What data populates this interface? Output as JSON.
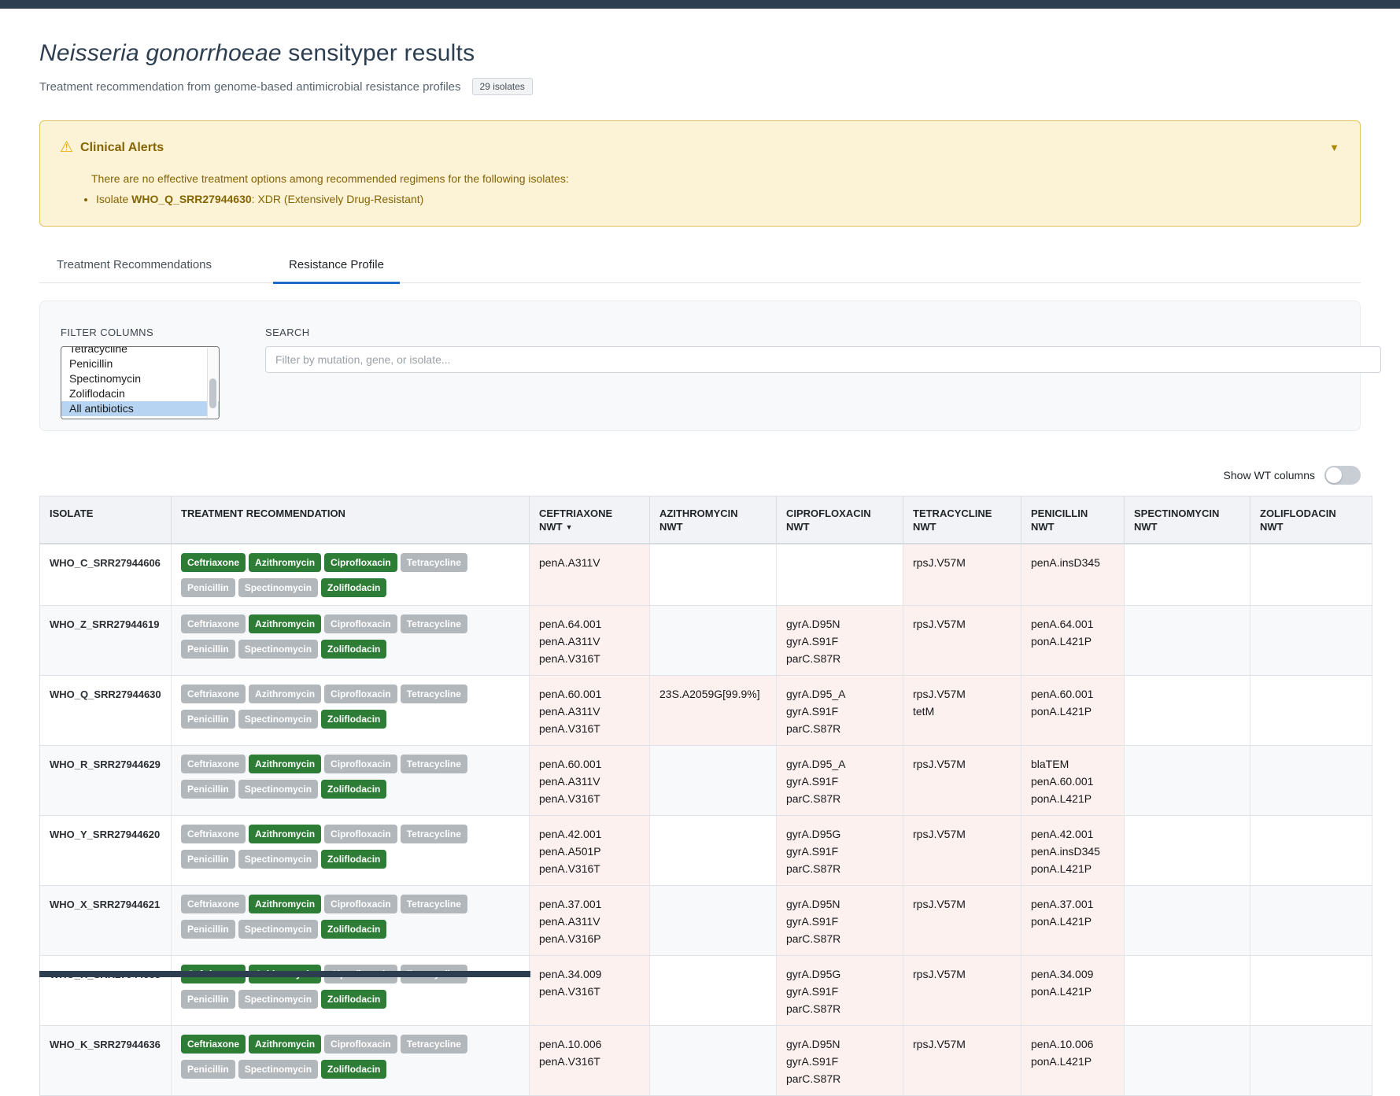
{
  "page": {
    "title_species": "Neisseria gonorrhoeae",
    "title_rest": " sensityper results",
    "subtitle": "Treatment recommendation from genome-based antimicrobial resistance profiles",
    "isolate_count": "29 isolates"
  },
  "alert": {
    "warning_icon": "⚠",
    "title": "Clinical Alerts",
    "collapse_icon": "▼",
    "message": "There are no effective treatment options among recommended regimens for the following isolates:",
    "items": [
      {
        "prefix": "Isolate ",
        "isolate": "WHO_Q_SRR27944630",
        "suffix": ": XDR (Extensively Drug-Resistant)"
      }
    ]
  },
  "tabs": [
    {
      "label": "Treatment Recommendations",
      "active": false
    },
    {
      "label": "Resistance Profile",
      "active": true
    }
  ],
  "filters": {
    "filter_columns_label": "FILTER COLUMNS",
    "options": [
      "Tetracycline",
      "Penicillin",
      "Spectinomycin",
      "Zoliflodacin",
      "All antibiotics"
    ],
    "selected_option": "All antibiotics",
    "search_label": "SEARCH",
    "search_placeholder": "Filter by mutation, gene, or isolate...",
    "search_value": ""
  },
  "toolbar": {
    "toggle_label": "Show WT columns",
    "toggle_state": "off"
  },
  "table": {
    "sort_icon": "▼",
    "columns": [
      {
        "label": "ISOLATE"
      },
      {
        "label": "TREATMENT RECOMMENDATION"
      },
      {
        "label": "CEFTRIAXONE",
        "sub": "NWT",
        "sorted": true
      },
      {
        "label": "AZITHROMYCIN",
        "sub": "NWT"
      },
      {
        "label": "CIPROFLOXACIN",
        "sub": "NWT"
      },
      {
        "label": "TETRACYCLINE",
        "sub": "NWT"
      },
      {
        "label": "PENICILLIN",
        "sub": "NWT"
      },
      {
        "label": "SPECTINOMYCIN",
        "sub": "NWT"
      },
      {
        "label": "ZOLIFLODACIN",
        "sub": "NWT"
      }
    ],
    "antibiotics": [
      "Ceftriaxone",
      "Azithromycin",
      "Ciprofloxacin",
      "Tetracycline",
      "Penicillin",
      "Spectinomycin",
      "Zoliflodacin"
    ],
    "rows": [
      {
        "isolate": "WHO_C_SRR27944606",
        "badges": [
          true,
          true,
          true,
          false,
          false,
          false,
          true
        ],
        "cells": [
          [
            "penA.A311V"
          ],
          [],
          [],
          [
            "rpsJ.V57M"
          ],
          [
            "penA.insD345"
          ],
          [],
          []
        ]
      },
      {
        "isolate": "WHO_Z_SRR27944619",
        "badges": [
          false,
          true,
          false,
          false,
          false,
          false,
          true
        ],
        "cells": [
          [
            "penA.64.001",
            "penA.A311V",
            "penA.V316T"
          ],
          [],
          [
            "gyrA.D95N",
            "gyrA.S91F",
            "parC.S87R"
          ],
          [
            "rpsJ.V57M"
          ],
          [
            "penA.64.001",
            "ponA.L421P"
          ],
          [],
          []
        ]
      },
      {
        "isolate": "WHO_Q_SRR27944630",
        "badges": [
          false,
          false,
          false,
          false,
          false,
          false,
          true
        ],
        "cells": [
          [
            "penA.60.001",
            "penA.A311V",
            "penA.V316T"
          ],
          [
            "23S.A2059G[99.9%]"
          ],
          [
            "gyrA.D95_A",
            "gyrA.S91F",
            "parC.S87R"
          ],
          [
            "rpsJ.V57M",
            "tetM"
          ],
          [
            "penA.60.001",
            "ponA.L421P"
          ],
          [],
          []
        ]
      },
      {
        "isolate": "WHO_R_SRR27944629",
        "badges": [
          false,
          true,
          false,
          false,
          false,
          false,
          true
        ],
        "cells": [
          [
            "penA.60.001",
            "penA.A311V",
            "penA.V316T"
          ],
          [],
          [
            "gyrA.D95_A",
            "gyrA.S91F",
            "parC.S87R"
          ],
          [
            "rpsJ.V57M"
          ],
          [
            "blaTEM",
            "penA.60.001",
            "ponA.L421P"
          ],
          [],
          []
        ]
      },
      {
        "isolate": "WHO_Y_SRR27944620",
        "badges": [
          false,
          true,
          false,
          false,
          false,
          false,
          true
        ],
        "cells": [
          [
            "penA.42.001",
            "penA.A501P",
            "penA.V316T"
          ],
          [],
          [
            "gyrA.D95G",
            "gyrA.S91F",
            "parC.S87R"
          ],
          [
            "rpsJ.V57M"
          ],
          [
            "penA.42.001",
            "penA.insD345",
            "ponA.L421P"
          ],
          [],
          []
        ]
      },
      {
        "isolate": "WHO_X_SRR27944621",
        "badges": [
          false,
          true,
          false,
          false,
          false,
          false,
          true
        ],
        "cells": [
          [
            "penA.37.001",
            "penA.A311V",
            "penA.V316P"
          ],
          [],
          [
            "gyrA.D95N",
            "gyrA.S91F",
            "parC.S87R"
          ],
          [
            "rpsJ.V57M"
          ],
          [
            "penA.37.001",
            "ponA.L421P"
          ],
          [],
          []
        ]
      },
      {
        "isolate": "WHO_H_SRR27944583",
        "badges": [
          true,
          true,
          false,
          false,
          false,
          false,
          true
        ],
        "cells": [
          [
            "penA.34.009",
            "penA.V316T"
          ],
          [],
          [
            "gyrA.D95G",
            "gyrA.S91F",
            "parC.S87R"
          ],
          [
            "rpsJ.V57M"
          ],
          [
            "penA.34.009",
            "ponA.L421P"
          ],
          [],
          []
        ]
      },
      {
        "isolate": "WHO_K_SRR27944636",
        "badges": [
          true,
          true,
          false,
          false,
          false,
          false,
          true
        ],
        "cells": [
          [
            "penA.10.006",
            "penA.V316T"
          ],
          [],
          [
            "gyrA.D95N",
            "gyrA.S91F",
            "parC.S87R"
          ],
          [
            "rpsJ.V57M"
          ],
          [
            "penA.10.006",
            "ponA.L421P"
          ],
          [],
          []
        ]
      }
    ]
  },
  "colors": {
    "accent_blue": "#1b6ac9",
    "badge_green": "#2e7d36",
    "badge_gray": "#b2b7bc",
    "alert_bg": "#fcf3d6",
    "alert_border": "#e3c35b",
    "alert_text": "#856404",
    "mutation_highlight": "#fdf1ef",
    "topbar": "#2c3e50"
  }
}
